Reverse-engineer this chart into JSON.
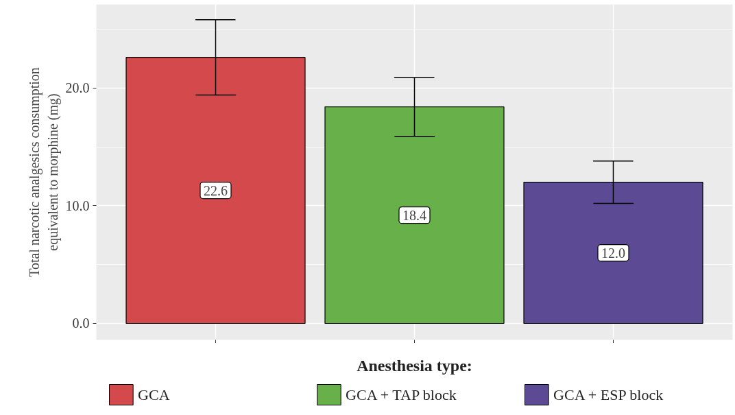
{
  "chart_data": {
    "type": "bar",
    "ylabel": "Total narcotic analgesics consumption\nequivalent to morphine (mg)",
    "legend_title": "Anesthesia type:",
    "categories": [
      null,
      null,
      null
    ],
    "series": [
      {
        "name": "GCA",
        "color": "#d44a4c",
        "values": [
          22.6,
          null,
          null
        ],
        "value_labels": [
          "22.6",
          null,
          null
        ],
        "errors": [
          [
            19.4,
            25.8
          ],
          null,
          null
        ]
      },
      {
        "name": "GCA + TAP block",
        "color": "#67b04a",
        "values": [
          null,
          18.4,
          null
        ],
        "value_labels": [
          null,
          "18.4",
          null
        ],
        "errors": [
          null,
          [
            15.9,
            20.9
          ],
          null
        ]
      },
      {
        "name": "GCA + ESP block",
        "color": "#5c4b94",
        "values": [
          null,
          null,
          12.0
        ],
        "value_labels": [
          null,
          null,
          "12.0"
        ],
        "errors": [
          null,
          null,
          [
            10.2,
            13.8
          ]
        ]
      }
    ],
    "ylim": [
      -1.4,
      27.1
    ],
    "yticks": [
      {
        "value": 0,
        "label": "0.0"
      },
      {
        "value": 10,
        "label": "10.0"
      },
      {
        "value": 20,
        "label": "20.0"
      }
    ],
    "grid": true,
    "legend": "bottom"
  }
}
